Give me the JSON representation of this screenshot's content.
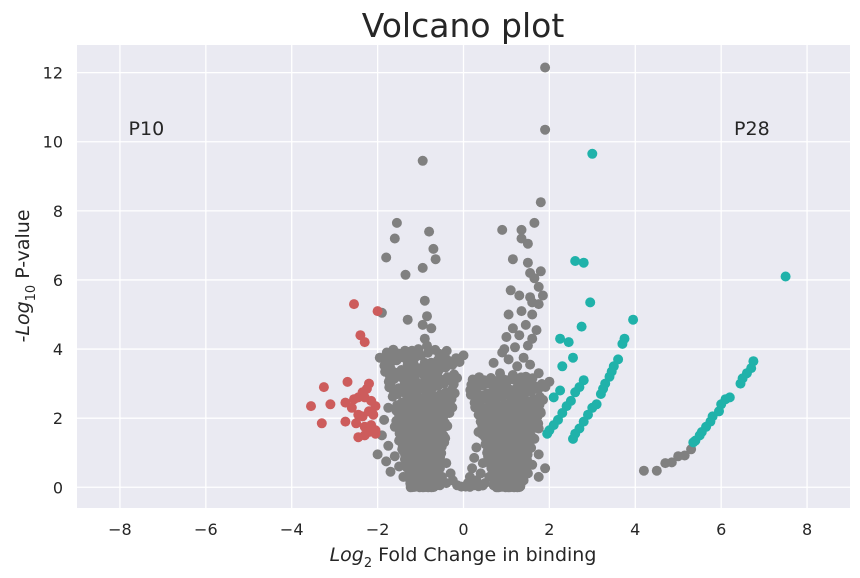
{
  "chart_data": {
    "type": "scatter",
    "title": "Volcano plot",
    "xlabel": {
      "prefix": "Log",
      "sub": "2",
      "rest": " Fold Change in binding"
    },
    "ylabel": {
      "prefix": "-Log",
      "sub": "10",
      "rest": " P-value"
    },
    "xlim": [
      -9,
      9
    ],
    "ylim": [
      -0.6,
      12.8
    ],
    "x_ticks": [
      -8,
      -6,
      -4,
      -2,
      0,
      2,
      4,
      6,
      8
    ],
    "y_ticks": [
      0,
      2,
      4,
      6,
      8,
      10,
      12
    ],
    "x_tick_labels": [
      "−8",
      "−6",
      "−4",
      "−2",
      "0",
      "2",
      "4",
      "6",
      "8"
    ],
    "y_tick_labels": [
      "0",
      "2",
      "4",
      "6",
      "8",
      "10",
      "12"
    ],
    "grid": true,
    "annotations": [
      {
        "text": "P10",
        "x": -7.8,
        "y": 10.4
      },
      {
        "text": "P28",
        "x": 6.3,
        "y": 10.4
      }
    ],
    "colors": {
      "background": "#eaeaf2",
      "grid": "#ffffff",
      "down": "#cd5c5c",
      "up": "#20b2aa",
      "neutral": "#808080"
    },
    "series": [
      {
        "color_key": "neutral",
        "points": [
          [
            1.9,
            12.15
          ],
          [
            1.9,
            10.35
          ],
          [
            -0.95,
            9.45
          ],
          [
            1.8,
            8.25
          ],
          [
            -1.55,
            7.65
          ],
          [
            1.65,
            7.65
          ],
          [
            0.9,
            7.45
          ],
          [
            1.35,
            7.45
          ],
          [
            -0.8,
            7.4
          ],
          [
            -1.6,
            7.2
          ],
          [
            1.35,
            7.2
          ],
          [
            1.5,
            7.05
          ],
          [
            -0.7,
            6.9
          ],
          [
            -1.8,
            6.65
          ],
          [
            -0.65,
            6.6
          ],
          [
            1.15,
            6.6
          ],
          [
            1.5,
            6.5
          ],
          [
            -0.95,
            6.35
          ],
          [
            1.8,
            6.25
          ],
          [
            -1.35,
            6.15
          ],
          [
            1.55,
            6.2
          ],
          [
            1.65,
            6.05
          ],
          [
            1.75,
            5.8
          ],
          [
            1.85,
            5.55
          ],
          [
            1.1,
            5.7
          ],
          [
            1.3,
            5.55
          ],
          [
            1.55,
            5.5
          ],
          [
            1.6,
            5.35
          ],
          [
            1.75,
            5.3
          ],
          [
            -0.9,
            5.4
          ],
          [
            -1.9,
            5.05
          ],
          [
            -0.85,
            4.95
          ],
          [
            1.05,
            5.0
          ],
          [
            1.35,
            5.1
          ],
          [
            1.6,
            5.0
          ],
          [
            -1.3,
            4.85
          ],
          [
            -0.95,
            4.7
          ],
          [
            -0.75,
            4.6
          ],
          [
            1.15,
            4.6
          ],
          [
            1.45,
            4.7
          ],
          [
            1.7,
            4.55
          ],
          [
            -0.9,
            4.3
          ],
          [
            1.0,
            4.35
          ],
          [
            1.3,
            4.4
          ],
          [
            1.6,
            4.3
          ],
          [
            -1.2,
            3.95
          ],
          [
            -1.05,
            4.0
          ],
          [
            -0.85,
            4.1
          ],
          [
            0.95,
            4.0
          ],
          [
            1.2,
            4.05
          ],
          [
            1.5,
            4.1
          ],
          [
            0.9,
            3.9
          ],
          [
            -1.95,
            3.75
          ],
          [
            -1.6,
            3.85
          ],
          [
            1.4,
            3.75
          ],
          [
            1.05,
            3.7
          ],
          [
            -1.3,
            3.55
          ],
          [
            0.7,
            3.6
          ],
          [
            1.25,
            3.5
          ],
          [
            1.55,
            3.55
          ],
          [
            -1.0,
            3.45
          ],
          [
            -0.55,
            3.5
          ],
          [
            -0.7,
            3.3
          ],
          [
            0.85,
            3.3
          ],
          [
            1.15,
            3.25
          ],
          [
            1.45,
            3.2
          ],
          [
            1.75,
            3.3
          ],
          [
            -1.45,
            3.2
          ],
          [
            -0.9,
            3.2
          ],
          [
            0.6,
            3.05
          ],
          [
            1.0,
            3.1
          ],
          [
            -1.7,
            3.0
          ],
          [
            -0.6,
            3.0
          ],
          [
            1.3,
            3.0
          ],
          [
            1.6,
            2.95
          ],
          [
            -1.2,
            2.9
          ],
          [
            -0.95,
            2.85
          ],
          [
            0.75,
            2.85
          ],
          [
            1.1,
            2.8
          ],
          [
            1.45,
            2.75
          ],
          [
            -1.6,
            2.7
          ],
          [
            -1.3,
            2.65
          ],
          [
            -0.8,
            2.65
          ],
          [
            0.55,
            2.6
          ],
          [
            0.9,
            2.6
          ],
          [
            1.25,
            2.55
          ],
          [
            1.7,
            2.55
          ],
          [
            -1.4,
            2.45
          ],
          [
            -1.05,
            2.45
          ],
          [
            -0.7,
            2.4
          ],
          [
            0.65,
            2.4
          ],
          [
            1.05,
            2.4
          ],
          [
            1.5,
            2.35
          ],
          [
            -1.75,
            2.3
          ],
          [
            -1.2,
            2.25
          ],
          [
            -0.6,
            2.2
          ],
          [
            0.45,
            2.2
          ],
          [
            0.85,
            2.2
          ],
          [
            1.3,
            2.2
          ],
          [
            1.8,
            2.15
          ],
          [
            -1.5,
            2.1
          ],
          [
            -0.95,
            2.05
          ],
          [
            0.7,
            2.05
          ],
          [
            1.15,
            2.0
          ],
          [
            1.6,
            2.0
          ],
          [
            -1.85,
            1.95
          ],
          [
            -1.25,
            1.9
          ],
          [
            -0.75,
            1.9
          ],
          [
            0.4,
            1.9
          ],
          [
            0.95,
            1.85
          ],
          [
            1.4,
            1.85
          ],
          [
            -1.6,
            1.75
          ],
          [
            -1.05,
            1.75
          ],
          [
            -0.55,
            1.7
          ],
          [
            0.6,
            1.7
          ],
          [
            1.2,
            1.7
          ],
          [
            1.75,
            1.7
          ],
          [
            -1.35,
            1.6
          ],
          [
            -0.85,
            1.6
          ],
          [
            0.35,
            1.6
          ],
          [
            0.85,
            1.55
          ],
          [
            1.5,
            1.55
          ],
          [
            -1.9,
            1.5
          ],
          [
            -1.15,
            1.45
          ],
          [
            -0.65,
            1.45
          ],
          [
            0.5,
            1.45
          ],
          [
            1.05,
            1.4
          ],
          [
            1.65,
            1.4
          ],
          [
            -1.5,
            1.35
          ],
          [
            -0.95,
            1.3
          ],
          [
            -0.45,
            1.3
          ],
          [
            0.7,
            1.3
          ],
          [
            1.3,
            1.25
          ],
          [
            -1.75,
            1.2
          ],
          [
            -1.25,
            1.2
          ],
          [
            -0.75,
            1.15
          ],
          [
            0.3,
            1.15
          ],
          [
            0.9,
            1.15
          ],
          [
            1.5,
            1.1
          ],
          [
            -1.4,
            1.05
          ],
          [
            -1.0,
            1.0
          ],
          [
            -0.55,
            1.0
          ],
          [
            0.55,
            1.0
          ],
          [
            1.15,
            1.0
          ],
          [
            1.75,
            0.95
          ],
          [
            -2.0,
            0.95
          ],
          [
            -1.6,
            0.9
          ],
          [
            -1.15,
            0.85
          ],
          [
            -0.7,
            0.85
          ],
          [
            0.25,
            0.85
          ],
          [
            0.75,
            0.85
          ],
          [
            1.35,
            0.8
          ],
          [
            -1.8,
            0.75
          ],
          [
            -1.3,
            0.7
          ],
          [
            -0.85,
            0.7
          ],
          [
            -0.4,
            0.7
          ],
          [
            0.45,
            0.7
          ],
          [
            1.0,
            0.65
          ],
          [
            1.6,
            0.65
          ],
          [
            -1.5,
            0.6
          ],
          [
            -1.0,
            0.55
          ],
          [
            -0.55,
            0.55
          ],
          [
            0.2,
            0.55
          ],
          [
            0.65,
            0.55
          ],
          [
            1.25,
            0.5
          ],
          [
            1.9,
            0.55
          ],
          [
            -1.7,
            0.45
          ],
          [
            -1.2,
            0.45
          ],
          [
            -0.75,
            0.4
          ],
          [
            -0.3,
            0.4
          ],
          [
            0.4,
            0.4
          ],
          [
            0.9,
            0.4
          ],
          [
            1.5,
            0.4
          ],
          [
            -1.4,
            0.3
          ],
          [
            -0.95,
            0.3
          ],
          [
            -0.5,
            0.3
          ],
          [
            0.15,
            0.3
          ],
          [
            0.6,
            0.3
          ],
          [
            1.15,
            0.3
          ],
          [
            1.75,
            0.3
          ],
          [
            -1.1,
            0.2
          ],
          [
            -0.65,
            0.2
          ],
          [
            -0.25,
            0.2
          ],
          [
            0.3,
            0.2
          ],
          [
            0.8,
            0.2
          ],
          [
            1.4,
            0.2
          ],
          [
            -0.8,
            0.12
          ],
          [
            -0.4,
            0.12
          ],
          [
            0.1,
            0.12
          ],
          [
            0.5,
            0.12
          ],
          [
            1.0,
            0.12
          ],
          [
            -0.55,
            0.06
          ],
          [
            -0.15,
            0.06
          ],
          [
            0.25,
            0.06
          ],
          [
            0.7,
            0.06
          ],
          [
            -0.05,
            0.02
          ],
          [
            0.05,
            0.02
          ],
          [
            0.15,
            0.01
          ],
          [
            0.35,
            0.03
          ],
          [
            0.45,
            0.05
          ],
          [
            4.2,
            0.48
          ],
          [
            4.5,
            0.48
          ],
          [
            4.7,
            0.7
          ],
          [
            4.85,
            0.72
          ],
          [
            5.0,
            0.9
          ],
          [
            5.15,
            0.92
          ],
          [
            5.3,
            1.1
          ],
          [
            -1.05,
            2.6
          ],
          [
            -0.85,
            2.9
          ],
          [
            -1.1,
            3.05
          ],
          [
            -0.9,
            3.6
          ],
          [
            -1.1,
            3.35
          ],
          [
            -0.8,
            2.5
          ],
          [
            -1.0,
            2.3
          ],
          [
            -0.75,
            2.1
          ],
          [
            -1.15,
            2.2
          ],
          [
            -0.9,
            1.95
          ],
          [
            1.0,
            2.9
          ],
          [
            1.2,
            2.65
          ],
          [
            0.95,
            2.3
          ],
          [
            1.25,
            2.1
          ],
          [
            0.8,
            1.8
          ],
          [
            1.05,
            1.6
          ],
          [
            1.3,
            1.45
          ],
          [
            0.75,
            1.35
          ]
        ]
      },
      {
        "color_key": "down",
        "points": [
          [
            -2.55,
            5.3
          ],
          [
            -2.0,
            5.1
          ],
          [
            -2.4,
            4.4
          ],
          [
            -2.3,
            4.2
          ],
          [
            -3.25,
            2.9
          ],
          [
            -2.7,
            3.05
          ],
          [
            -2.55,
            2.55
          ],
          [
            -2.45,
            2.6
          ],
          [
            -2.35,
            2.75
          ],
          [
            -2.25,
            2.85
          ],
          [
            -2.2,
            3.0
          ],
          [
            -2.3,
            2.6
          ],
          [
            -2.15,
            2.5
          ],
          [
            -2.05,
            2.35
          ],
          [
            -3.1,
            2.4
          ],
          [
            -2.75,
            2.45
          ],
          [
            -3.55,
            2.35
          ],
          [
            -2.6,
            2.3
          ],
          [
            -2.45,
            2.1
          ],
          [
            -2.35,
            2.05
          ],
          [
            -2.2,
            2.2
          ],
          [
            -2.1,
            2.1
          ],
          [
            -3.3,
            1.85
          ],
          [
            -2.75,
            1.9
          ],
          [
            -2.5,
            1.85
          ],
          [
            -2.3,
            1.75
          ],
          [
            -2.15,
            1.8
          ],
          [
            -2.05,
            1.65
          ],
          [
            -2.45,
            1.45
          ],
          [
            -2.3,
            1.5
          ],
          [
            -2.2,
            1.6
          ],
          [
            -2.05,
            1.55
          ]
        ]
      },
      {
        "color_key": "up",
        "points": [
          [
            3.0,
            9.65
          ],
          [
            2.6,
            6.55
          ],
          [
            2.8,
            6.5
          ],
          [
            7.5,
            6.1
          ],
          [
            2.95,
            5.35
          ],
          [
            3.95,
            4.85
          ],
          [
            2.75,
            4.65
          ],
          [
            3.75,
            4.3
          ],
          [
            2.25,
            4.3
          ],
          [
            3.7,
            4.15
          ],
          [
            2.45,
            4.2
          ],
          [
            2.55,
            3.75
          ],
          [
            3.6,
            3.7
          ],
          [
            3.5,
            3.5
          ],
          [
            2.3,
            3.5
          ],
          [
            3.45,
            3.35
          ],
          [
            2.8,
            3.1
          ],
          [
            3.4,
            3.2
          ],
          [
            2.7,
            2.9
          ],
          [
            3.3,
            3.0
          ],
          [
            2.6,
            2.75
          ],
          [
            3.25,
            2.85
          ],
          [
            2.25,
            2.8
          ],
          [
            2.5,
            2.5
          ],
          [
            3.2,
            2.7
          ],
          [
            2.4,
            2.35
          ],
          [
            2.1,
            2.6
          ],
          [
            3.1,
            2.4
          ],
          [
            2.3,
            2.15
          ],
          [
            3.0,
            2.3
          ],
          [
            2.2,
            1.95
          ],
          [
            2.9,
            2.1
          ],
          [
            2.1,
            1.8
          ],
          [
            2.8,
            1.9
          ],
          [
            2.0,
            1.65
          ],
          [
            2.7,
            1.7
          ],
          [
            1.95,
            1.55
          ],
          [
            2.6,
            1.55
          ],
          [
            2.55,
            1.4
          ],
          [
            6.75,
            3.65
          ],
          [
            6.7,
            3.45
          ],
          [
            6.6,
            3.3
          ],
          [
            6.5,
            3.15
          ],
          [
            6.45,
            3.0
          ],
          [
            6.2,
            2.6
          ],
          [
            6.1,
            2.55
          ],
          [
            6.0,
            2.4
          ],
          [
            5.95,
            2.2
          ],
          [
            5.8,
            2.05
          ],
          [
            5.75,
            1.9
          ],
          [
            5.65,
            1.75
          ],
          [
            5.55,
            1.6
          ],
          [
            5.5,
            1.5
          ],
          [
            5.4,
            1.35
          ],
          [
            5.35,
            1.3
          ]
        ]
      }
    ]
  }
}
